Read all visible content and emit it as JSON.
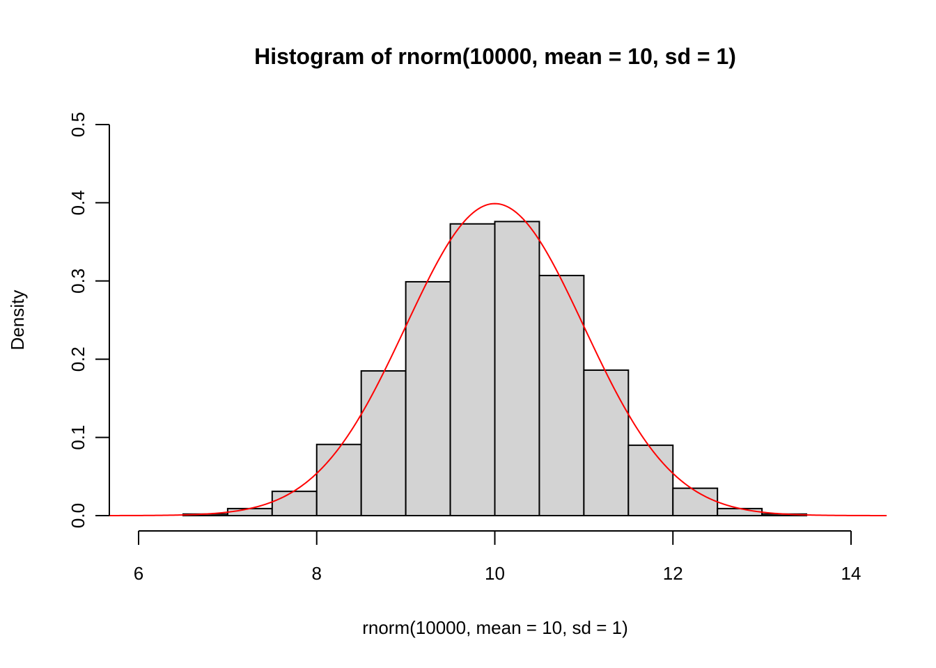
{
  "chart_data": {
    "type": "bar",
    "title": "Histogram of rnorm(10000, mean = 10, sd = 1)",
    "xlabel": "rnorm(10000, mean = 10, sd = 1)",
    "ylabel": "Density",
    "xlim": [
      6,
      14
    ],
    "ylim": [
      0,
      0.5
    ],
    "x_ticks": [
      "6",
      "8",
      "10",
      "12",
      "14"
    ],
    "y_ticks": [
      "0.0",
      "0.1",
      "0.2",
      "0.3",
      "0.4",
      "0.5"
    ],
    "bin_width": 0.5,
    "bins": [
      {
        "x0": 6.5,
        "x1": 7.0,
        "density": 0.002
      },
      {
        "x0": 7.0,
        "x1": 7.5,
        "density": 0.009
      },
      {
        "x0": 7.5,
        "x1": 8.0,
        "density": 0.031
      },
      {
        "x0": 8.0,
        "x1": 8.5,
        "density": 0.091
      },
      {
        "x0": 8.5,
        "x1": 9.0,
        "density": 0.185
      },
      {
        "x0": 9.0,
        "x1": 9.5,
        "density": 0.299
      },
      {
        "x0": 9.5,
        "x1": 10.0,
        "density": 0.373
      },
      {
        "x0": 10.0,
        "x1": 10.5,
        "density": 0.376
      },
      {
        "x0": 10.5,
        "x1": 11.0,
        "density": 0.307
      },
      {
        "x0": 11.0,
        "x1": 11.5,
        "density": 0.186
      },
      {
        "x0": 11.5,
        "x1": 12.0,
        "density": 0.09
      },
      {
        "x0": 12.0,
        "x1": 12.5,
        "density": 0.035
      },
      {
        "x0": 12.5,
        "x1": 13.0,
        "density": 0.009
      },
      {
        "x0": 13.0,
        "x1": 13.5,
        "density": 0.002
      }
    ],
    "overlay_curve": {
      "type": "normal-density",
      "mean": 10,
      "sd": 1,
      "x_range": [
        5.6,
        14.4
      ]
    },
    "colors": {
      "bar_fill": "#d3d3d3",
      "bar_stroke": "#000000",
      "curve": "#ff0000"
    },
    "grid": false,
    "legend": "none"
  }
}
